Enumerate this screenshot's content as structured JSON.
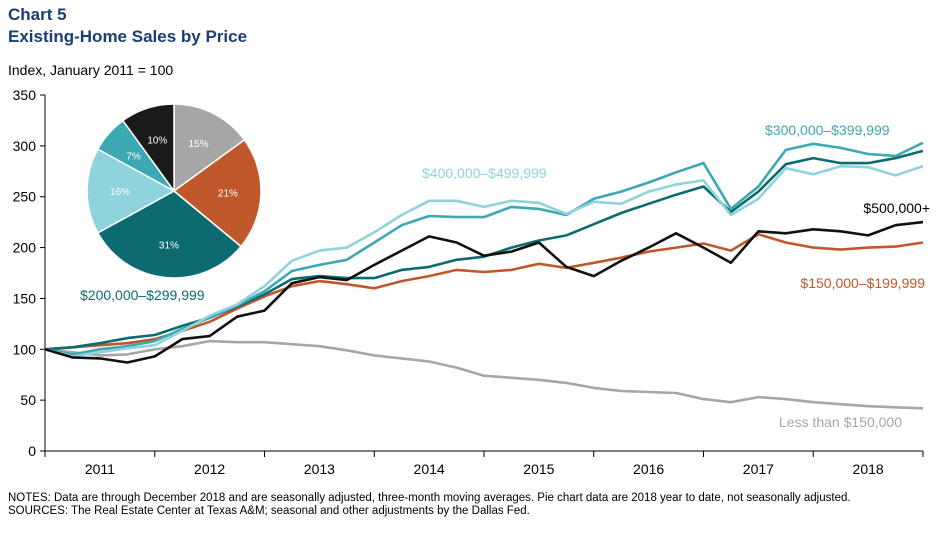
{
  "header": {
    "chart_number": "Chart 5",
    "title": "Existing-Home Sales by Price",
    "unit": "Index, January 2011 = 100"
  },
  "footer": {
    "notes": "NOTES: Data are through December 2018 and are seasonally adjusted, three-month moving averages. Pie chart data are 2018 year to date, not seasonally adjusted.",
    "sources": "SOURCES: The Real Estate Center at Texas A&M; seasonal and other adjustments by the Dallas Fed."
  },
  "chart_data": [
    {
      "type": "line",
      "ylim": [
        0,
        350
      ],
      "yticks": [
        0,
        50,
        100,
        150,
        200,
        250,
        300,
        350
      ],
      "xlim": [
        2011.0,
        2019.0
      ],
      "categories": [
        "2011",
        "2012",
        "2013",
        "2014",
        "2015",
        "2016",
        "2017",
        "2018"
      ],
      "grid": false,
      "series": [
        {
          "name": "Less than $150,000",
          "color": "#a6a6a6",
          "points": [
            [
              2011.0,
              100
            ],
            [
              2011.25,
              97
            ],
            [
              2011.5,
              94
            ],
            [
              2011.75,
              95
            ],
            [
              2012.0,
              100
            ],
            [
              2012.25,
              103
            ],
            [
              2012.5,
              108
            ],
            [
              2012.75,
              107
            ],
            [
              2013.0,
              107
            ],
            [
              2013.25,
              105
            ],
            [
              2013.5,
              103
            ],
            [
              2013.75,
              99
            ],
            [
              2014.0,
              94
            ],
            [
              2014.25,
              91
            ],
            [
              2014.5,
              88
            ],
            [
              2014.75,
              82
            ],
            [
              2015.0,
              74
            ],
            [
              2015.25,
              72
            ],
            [
              2015.5,
              70
            ],
            [
              2015.75,
              67
            ],
            [
              2016.0,
              62
            ],
            [
              2016.25,
              59
            ],
            [
              2016.5,
              58
            ],
            [
              2016.75,
              57
            ],
            [
              2017.0,
              51
            ],
            [
              2017.25,
              48
            ],
            [
              2017.5,
              53
            ],
            [
              2017.75,
              51
            ],
            [
              2018.0,
              48
            ],
            [
              2018.25,
              46
            ],
            [
              2018.5,
              44
            ],
            [
              2018.75,
              43
            ],
            [
              2019.0,
              42
            ]
          ]
        },
        {
          "name": "$150,000–$199,999",
          "color": "#c0582b",
          "points": [
            [
              2011.0,
              100
            ],
            [
              2011.25,
              102
            ],
            [
              2011.5,
              104
            ],
            [
              2011.75,
              106
            ],
            [
              2012.0,
              110
            ],
            [
              2012.25,
              118
            ],
            [
              2012.5,
              127
            ],
            [
              2012.75,
              140
            ],
            [
              2013.0,
              152
            ],
            [
              2013.25,
              162
            ],
            [
              2013.5,
              167
            ],
            [
              2013.75,
              164
            ],
            [
              2014.0,
              160
            ],
            [
              2014.25,
              167
            ],
            [
              2014.5,
              172
            ],
            [
              2014.75,
              178
            ],
            [
              2015.0,
              176
            ],
            [
              2015.25,
              178
            ],
            [
              2015.5,
              184
            ],
            [
              2015.75,
              180
            ],
            [
              2016.0,
              185
            ],
            [
              2016.25,
              190
            ],
            [
              2016.5,
              196
            ],
            [
              2016.75,
              200
            ],
            [
              2017.0,
              204
            ],
            [
              2017.25,
              197
            ],
            [
              2017.5,
              213
            ],
            [
              2017.75,
              205
            ],
            [
              2018.0,
              200
            ],
            [
              2018.25,
              198
            ],
            [
              2018.5,
              200
            ],
            [
              2018.75,
              201
            ],
            [
              2019.0,
              205
            ]
          ]
        },
        {
          "name": "$200,000–$299,999",
          "color": "#0b6b71",
          "points": [
            [
              2011.0,
              100
            ],
            [
              2011.25,
              102
            ],
            [
              2011.5,
              106
            ],
            [
              2011.75,
              111
            ],
            [
              2012.0,
              114
            ],
            [
              2012.25,
              123
            ],
            [
              2012.5,
              131
            ],
            [
              2012.75,
              142
            ],
            [
              2013.0,
              154
            ],
            [
              2013.25,
              169
            ],
            [
              2013.5,
              172
            ],
            [
              2013.75,
              170
            ],
            [
              2014.0,
              170
            ],
            [
              2014.25,
              178
            ],
            [
              2014.5,
              181
            ],
            [
              2014.75,
              188
            ],
            [
              2015.0,
              191
            ],
            [
              2015.25,
              200
            ],
            [
              2015.5,
              207
            ],
            [
              2015.75,
              212
            ],
            [
              2016.0,
              223
            ],
            [
              2016.25,
              234
            ],
            [
              2016.5,
              243
            ],
            [
              2016.75,
              252
            ],
            [
              2017.0,
              260
            ],
            [
              2017.25,
              235
            ],
            [
              2017.5,
              255
            ],
            [
              2017.75,
              282
            ],
            [
              2018.0,
              288
            ],
            [
              2018.25,
              283
            ],
            [
              2018.5,
              283
            ],
            [
              2018.75,
              288
            ],
            [
              2019.0,
              295
            ]
          ]
        },
        {
          "name": "$300,000–$399,999",
          "color": "#3ba8b3",
          "points": [
            [
              2011.0,
              100
            ],
            [
              2011.25,
              95
            ],
            [
              2011.5,
              100
            ],
            [
              2011.75,
              103
            ],
            [
              2012.0,
              108
            ],
            [
              2012.25,
              120
            ],
            [
              2012.5,
              131
            ],
            [
              2012.75,
              143
            ],
            [
              2013.0,
              157
            ],
            [
              2013.25,
              177
            ],
            [
              2013.5,
              183
            ],
            [
              2013.75,
              188
            ],
            [
              2014.0,
              205
            ],
            [
              2014.25,
              222
            ],
            [
              2014.5,
              231
            ],
            [
              2014.75,
              230
            ],
            [
              2015.0,
              230
            ],
            [
              2015.25,
              240
            ],
            [
              2015.5,
              238
            ],
            [
              2015.75,
              232
            ],
            [
              2016.0,
              248
            ],
            [
              2016.25,
              255
            ],
            [
              2016.5,
              264
            ],
            [
              2016.75,
              274
            ],
            [
              2017.0,
              283
            ],
            [
              2017.25,
              238
            ],
            [
              2017.5,
              260
            ],
            [
              2017.75,
              296
            ],
            [
              2018.0,
              302
            ],
            [
              2018.25,
              298
            ],
            [
              2018.5,
              292
            ],
            [
              2018.75,
              290
            ],
            [
              2019.0,
              303
            ]
          ]
        },
        {
          "name": "$400,000–$499,999",
          "color": "#8fd3dc",
          "points": [
            [
              2011.0,
              100
            ],
            [
              2011.25,
              93
            ],
            [
              2011.5,
              97
            ],
            [
              2011.75,
              101
            ],
            [
              2012.0,
              104
            ],
            [
              2012.25,
              118
            ],
            [
              2012.5,
              133
            ],
            [
              2012.75,
              144
            ],
            [
              2013.0,
              162
            ],
            [
              2013.25,
              187
            ],
            [
              2013.5,
              197
            ],
            [
              2013.75,
              200
            ],
            [
              2014.0,
              215
            ],
            [
              2014.25,
              232
            ],
            [
              2014.5,
              246
            ],
            [
              2014.75,
              246
            ],
            [
              2015.0,
              240
            ],
            [
              2015.25,
              246
            ],
            [
              2015.5,
              244
            ],
            [
              2015.75,
              233
            ],
            [
              2016.0,
              245
            ],
            [
              2016.25,
              243
            ],
            [
              2016.5,
              255
            ],
            [
              2016.75,
              262
            ],
            [
              2017.0,
              266
            ],
            [
              2017.25,
              232
            ],
            [
              2017.5,
              248
            ],
            [
              2017.75,
              278
            ],
            [
              2018.0,
              272
            ],
            [
              2018.25,
              280
            ],
            [
              2018.5,
              279
            ],
            [
              2018.75,
              271
            ],
            [
              2019.0,
              280
            ]
          ]
        },
        {
          "name": "$500,000+",
          "color": "#111111",
          "points": [
            [
              2011.0,
              100
            ],
            [
              2011.25,
              92
            ],
            [
              2011.5,
              91
            ],
            [
              2011.75,
              87
            ],
            [
              2012.0,
              93
            ],
            [
              2012.25,
              110
            ],
            [
              2012.5,
              113
            ],
            [
              2012.75,
              132
            ],
            [
              2013.0,
              138
            ],
            [
              2013.25,
              165
            ],
            [
              2013.5,
              171
            ],
            [
              2013.75,
              168
            ],
            [
              2014.0,
              183
            ],
            [
              2014.25,
              197
            ],
            [
              2014.5,
              211
            ],
            [
              2014.75,
              205
            ],
            [
              2015.0,
              192
            ],
            [
              2015.25,
              196
            ],
            [
              2015.5,
              205
            ],
            [
              2015.75,
              181
            ],
            [
              2016.0,
              172
            ],
            [
              2016.25,
              187
            ],
            [
              2016.5,
              200
            ],
            [
              2016.75,
              214
            ],
            [
              2017.0,
              200
            ],
            [
              2017.25,
              185
            ],
            [
              2017.5,
              216
            ],
            [
              2017.75,
              214
            ],
            [
              2018.0,
              218
            ],
            [
              2018.25,
              216
            ],
            [
              2018.5,
              212
            ],
            [
              2018.75,
              222
            ],
            [
              2019.0,
              225
            ]
          ]
        }
      ]
    },
    {
      "type": "pie",
      "slices": [
        {
          "label": "15%",
          "value": 15,
          "color": "#a6a6a6"
        },
        {
          "label": "21%",
          "value": 21,
          "color": "#c0582b"
        },
        {
          "label": "31%",
          "value": 31,
          "color": "#0b6b71"
        },
        {
          "label": "16%",
          "value": 16,
          "color": "#8fd3dc"
        },
        {
          "label": "7%",
          "value": 7,
          "color": "#3ba8b3"
        },
        {
          "label": "10%",
          "value": 10,
          "color": "#1a1a1a"
        }
      ]
    }
  ]
}
